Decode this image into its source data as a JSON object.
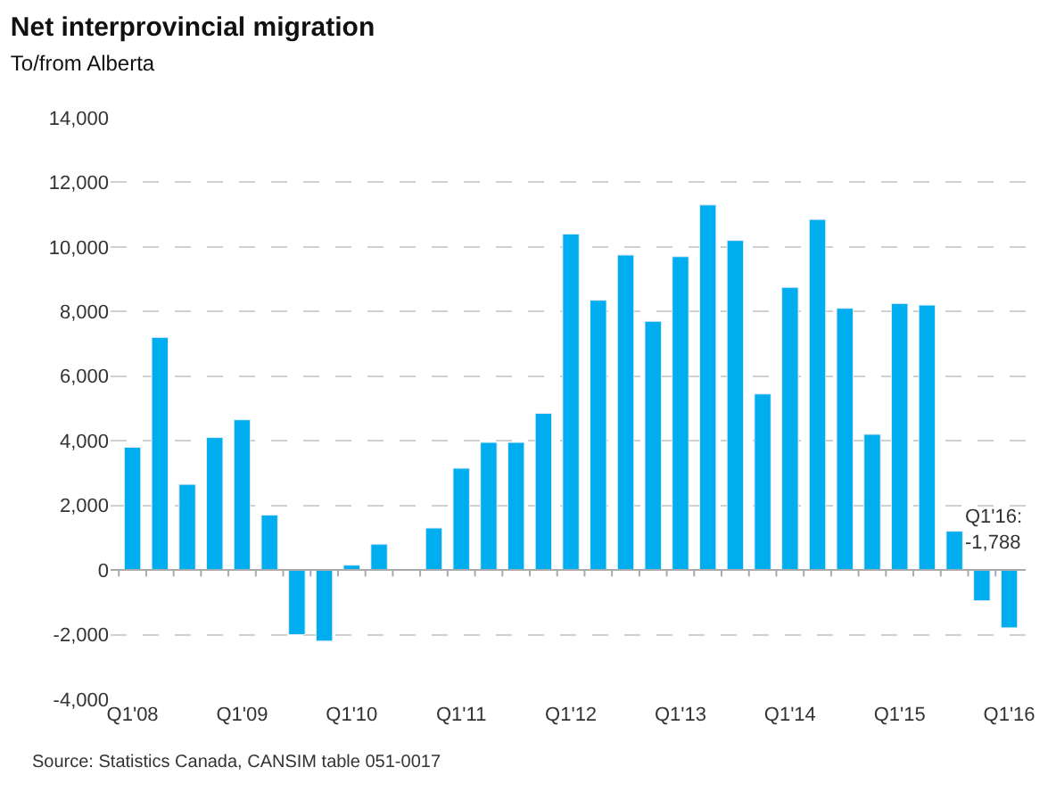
{
  "chart_data": {
    "type": "bar",
    "title": "Net interprovincial migration",
    "subtitle": "To/from Alberta",
    "categories": [
      "Q1'08",
      null,
      null,
      null,
      "Q1'09",
      null,
      null,
      null,
      "Q1'10",
      null,
      null,
      null,
      "Q1'11",
      null,
      null,
      null,
      "Q1'12",
      null,
      null,
      null,
      "Q1'13",
      null,
      null,
      null,
      "Q1'14",
      null,
      null,
      null,
      "Q1'15",
      null,
      null,
      null,
      "Q1'16"
    ],
    "values": [
      3800,
      7200,
      2650,
      4100,
      4650,
      1700,
      -2000,
      -2200,
      150,
      800,
      null,
      1300,
      3150,
      3950,
      3950,
      4850,
      10400,
      8350,
      9750,
      7700,
      9700,
      11300,
      10200,
      5450,
      8750,
      10850,
      8100,
      4200,
      8250,
      8200,
      1200,
      -950,
      -1788
    ],
    "color": "#00aeef",
    "ylim": [
      -4000,
      14000
    ],
    "yticks": [
      {
        "value": -4000,
        "label": "-4,000"
      },
      {
        "value": -2000,
        "label": "-2,000"
      },
      0,
      {
        "value": 2000,
        "label": "2,000"
      },
      {
        "value": 4000,
        "label": "4,000"
      },
      {
        "value": 6000,
        "label": "6,000"
      },
      {
        "value": 8000,
        "label": "8,000"
      },
      {
        "value": 10000,
        "label": "10,000"
      },
      {
        "value": 12000,
        "label": "12,000"
      },
      {
        "value": 14000,
        "label": "14,000"
      }
    ],
    "grid": "y",
    "legend": false,
    "annotations": [
      "Q1'16:\n-1,788",
      "Source: Statistics Canada, CANSIM table 051-0017"
    ]
  }
}
